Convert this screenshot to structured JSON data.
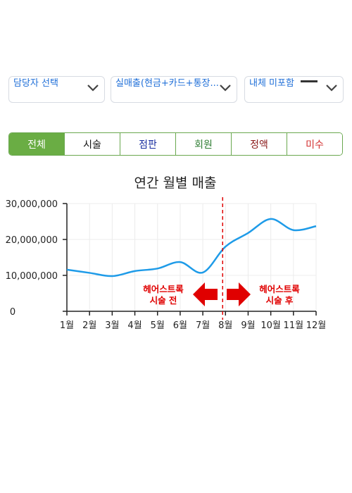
{
  "filters": {
    "staff": "담당자 선택",
    "sales_type": "실매출(현금+카드+통장...",
    "option": "내체 미포함"
  },
  "tabs": [
    {
      "label": "전체",
      "color": "#ffffff",
      "active": true
    },
    {
      "label": "시술",
      "color": "#111111"
    },
    {
      "label": "점판",
      "color": "#1a2fa0"
    },
    {
      "label": "회원",
      "color": "#2e7d32"
    },
    {
      "label": "정액",
      "color": "#8b1a1a"
    },
    {
      "label": "미수",
      "color": "#d32f2f"
    }
  ],
  "colors": {
    "accent": "#6aad44",
    "line": "#1e9be8",
    "annotation": "#e00000"
  },
  "chart_data": {
    "type": "line",
    "title": "연간 월별 매출",
    "categories": [
      "1월",
      "2월",
      "3월",
      "4월",
      "5월",
      "6월",
      "7월",
      "8월",
      "9월",
      "10월",
      "11월",
      "12월"
    ],
    "series": [
      {
        "values": [
          11600000,
          10700000,
          9800000,
          11200000,
          11900000,
          13700000,
          10800000,
          18000000,
          21800000,
          25700000,
          22600000,
          23700000
        ]
      }
    ],
    "yticks": [
      "0",
      "10,000,000",
      "20,000,000",
      "30,000,000"
    ],
    "ylim": [
      0,
      30000000
    ],
    "grid": true,
    "marker_month": "8월",
    "annotation_before": [
      "헤어스트록",
      "시술 전"
    ],
    "annotation_after": [
      "헤어스트록",
      "시술 후"
    ]
  }
}
